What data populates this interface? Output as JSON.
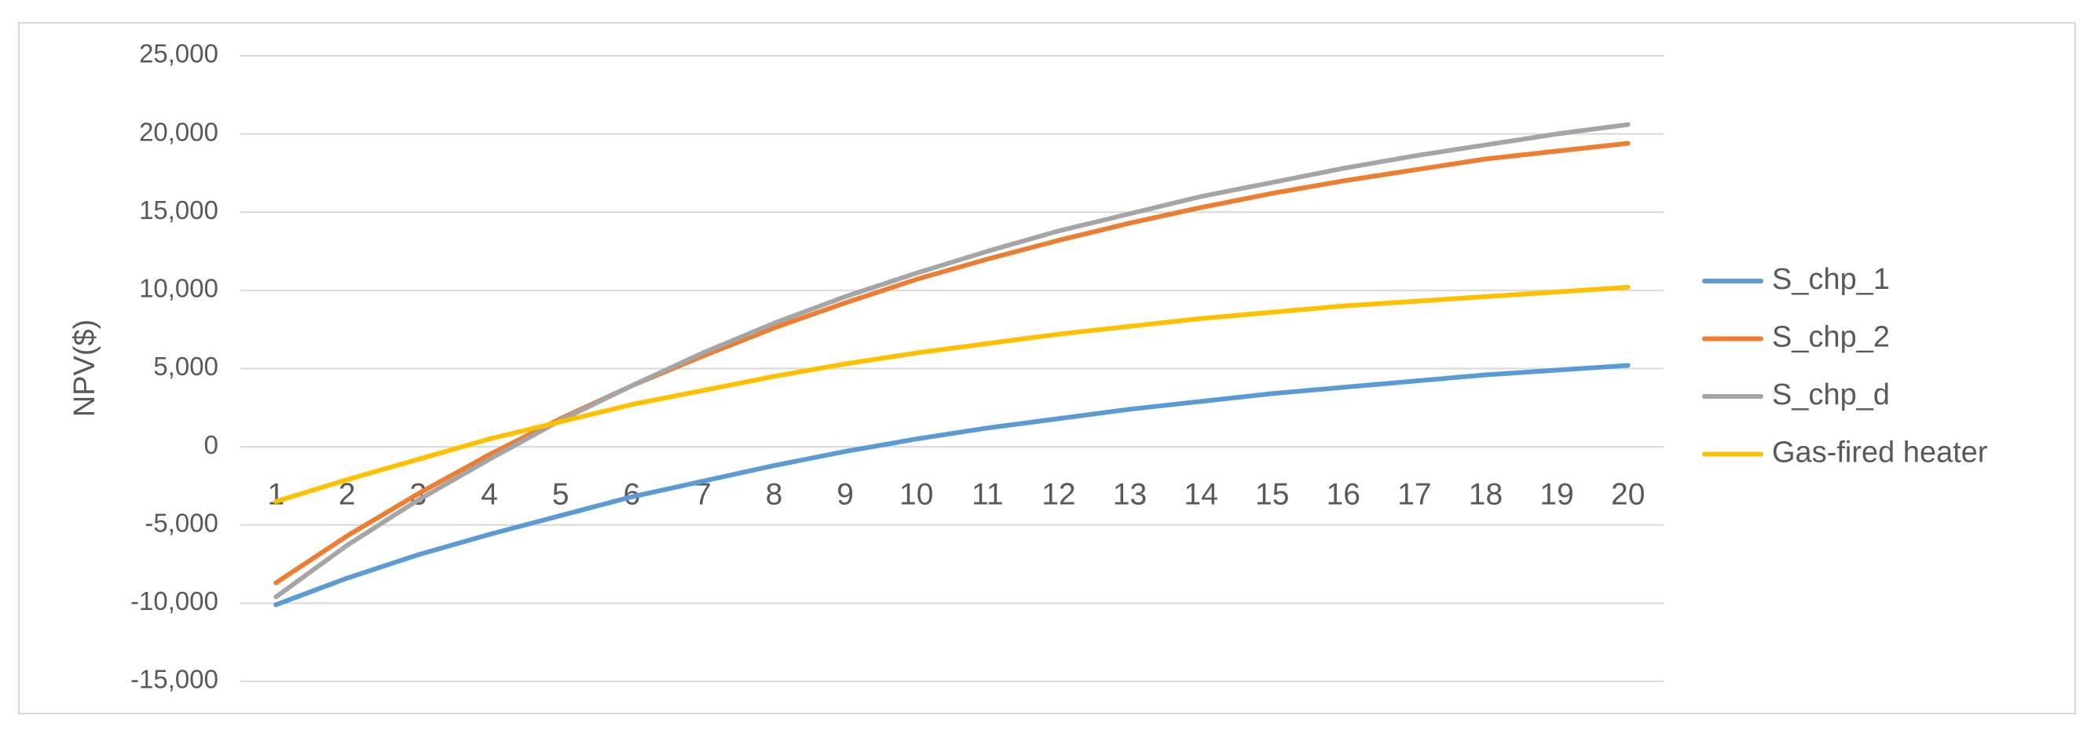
{
  "chart_data": {
    "type": "line",
    "y_title": "NPV($)",
    "categories": [
      "1",
      "2",
      "3",
      "4",
      "5",
      "6",
      "7",
      "8",
      "9",
      "10",
      "11",
      "12",
      "13",
      "14",
      "15",
      "16",
      "17",
      "18",
      "19",
      "20"
    ],
    "series": [
      {
        "name": "S_chp_1",
        "color": "#5b9bd5",
        "values": [
          -10100,
          -8400,
          -6900,
          -5600,
          -4400,
          -3200,
          -2200,
          -1200,
          -300,
          500,
          1200,
          1800,
          2400,
          2900,
          3400,
          3800,
          4200,
          4600,
          4900,
          5200
        ]
      },
      {
        "name": "S_chp_2",
        "color": "#ed7d31",
        "values": [
          -8700,
          -5700,
          -3000,
          -500,
          1800,
          3900,
          5800,
          7600,
          9200,
          10700,
          12000,
          13200,
          14300,
          15300,
          16200,
          17000,
          17700,
          18400,
          18900,
          19400
        ]
      },
      {
        "name": "S_chp_d",
        "color": "#a5a5a5",
        "values": [
          -9600,
          -6300,
          -3400,
          -800,
          1700,
          3900,
          6000,
          7900,
          9600,
          11100,
          12500,
          13800,
          14900,
          16000,
          16900,
          17800,
          18600,
          19300,
          20000,
          20600
        ]
      },
      {
        "name": "Gas-fired heater",
        "color": "#ffc000",
        "values": [
          -3500,
          -2100,
          -800,
          500,
          1600,
          2700,
          3600,
          4500,
          5300,
          6000,
          6600,
          7200,
          7700,
          8200,
          8600,
          9000,
          9300,
          9600,
          9900,
          10200
        ]
      }
    ],
    "ylim": [
      -15000,
      25000
    ],
    "yticks": [
      {
        "value": -15000,
        "label": "-15,000"
      },
      {
        "value": -10000,
        "label": "-10,000"
      },
      {
        "value": -5000,
        "label": "-5,000"
      },
      0,
      {
        "value": 5000,
        "label": "5,000"
      },
      {
        "value": 10000,
        "label": "10,000"
      },
      {
        "value": 15000,
        "label": "15,000"
      },
      {
        "value": 20000,
        "label": "20,000"
      },
      {
        "value": 25000,
        "label": "25,000"
      }
    ],
    "grid": true,
    "legend": "right"
  }
}
